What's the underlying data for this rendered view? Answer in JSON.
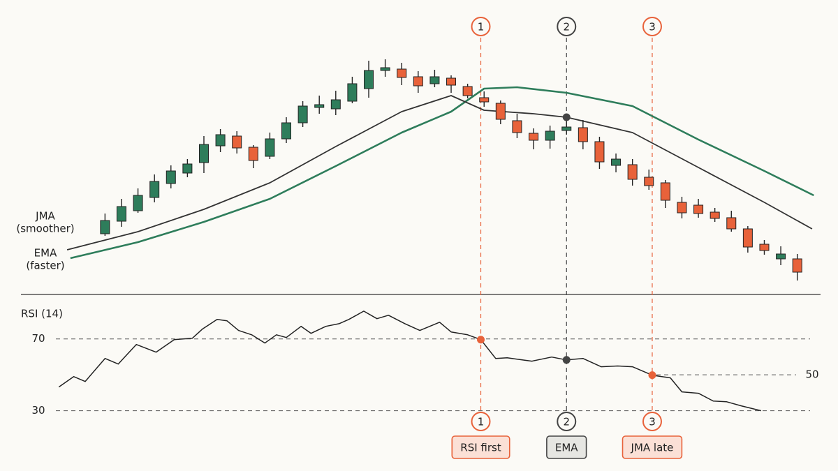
{
  "chart_data": [
    {
      "type": "candlestick",
      "up_color": "#2e7d5b",
      "down_color": "#e8623a",
      "xlim": [
        -5.1,
        43.2
      ],
      "ylim": [
        0,
        360
      ],
      "open": [
        85,
        103,
        118,
        137,
        157,
        172,
        187,
        211,
        225,
        209,
        196,
        221,
        244,
        266,
        264,
        275,
        293,
        319,
        321,
        310,
        300,
        308,
        296,
        280,
        272,
        247,
        229,
        219,
        233,
        237,
        217,
        183,
        184,
        166,
        158,
        130,
        126,
        116,
        108,
        92,
        70,
        49,
        49
      ],
      "close": [
        104,
        124,
        140,
        160,
        175,
        185,
        213,
        227,
        208,
        190,
        221,
        244,
        268,
        270,
        277,
        300,
        319,
        323,
        309,
        297,
        310,
        298,
        283,
        274,
        249,
        230,
        219,
        232,
        238,
        217,
        188,
        192,
        163,
        154,
        133,
        115,
        114,
        107,
        92,
        66,
        61,
        56,
        30
      ],
      "high": [
        114,
        135,
        150,
        170,
        183,
        192,
        225,
        235,
        232,
        212,
        230,
        252,
        275,
        283,
        290,
        310,
        333,
        335,
        330,
        318,
        320,
        312,
        300,
        289,
        276,
        257,
        236,
        240,
        248,
        248,
        224,
        200,
        192,
        177,
        162,
        138,
        135,
        122,
        118,
        96,
        76,
        67,
        56
      ],
      "low": [
        82,
        95,
        115,
        130,
        150,
        166,
        172,
        202,
        200,
        179,
        192,
        215,
        238,
        257,
        255,
        272,
        280,
        310,
        298,
        287,
        295,
        287,
        279,
        267,
        242,
        222,
        206,
        207,
        227,
        206,
        178,
        173,
        154,
        148,
        122,
        107,
        108,
        102,
        88,
        58,
        55,
        40,
        18
      ],
      "series": [
        {
          "name": "JMA",
          "note": "(smoother)",
          "color": "#2e7d5b",
          "x": [
            -2.1,
            2,
            6,
            10,
            14,
            18,
            21,
            23,
            25,
            28,
            32,
            36,
            40,
            43
          ],
          "values": [
            50,
            73,
            102,
            135,
            182,
            230,
            260,
            293,
            295,
            287,
            268,
            220,
            175,
            140
          ]
        },
        {
          "name": "EMA",
          "note": "(faster)",
          "color": "#333333",
          "x": [
            -2.3,
            2,
            6,
            10,
            14,
            18,
            21,
            23,
            26,
            28,
            32,
            36,
            40,
            42.9
          ],
          "values": [
            62,
            88,
            120,
            158,
            210,
            260,
            283,
            262,
            257,
            252,
            230,
            180,
            130,
            92
          ]
        }
      ],
      "markers": {
        "x": [
          28
        ],
        "values": [
          252
        ],
        "color": "#444444"
      },
      "signals": [
        {
          "number": 1,
          "label": "RSI first",
          "x": 22.8,
          "color": "#e8623a"
        },
        {
          "number": 2,
          "label": "EMA",
          "x": 28,
          "color": "#444444"
        },
        {
          "number": 3,
          "label": "JMA late",
          "x": 33.2,
          "color": "#e8623a"
        }
      ]
    },
    {
      "type": "line",
      "title": "RSI (14)",
      "color": "#222222",
      "xlim": [
        -5.1,
        43.2
      ],
      "ylim": [
        10,
        87
      ],
      "yticks": [
        30,
        70
      ],
      "right_ticks": [
        50
      ],
      "x": [
        -2.8,
        -1.9,
        -1.2,
        0,
        0.8,
        1.9,
        3.1,
        4.2,
        5.3,
        5.9,
        6.8,
        7.4,
        8.1,
        8.9,
        9.7,
        10.4,
        11,
        11.9,
        12.5,
        13.4,
        14.2,
        14.8,
        15.7,
        16.5,
        17.2,
        18.2,
        19.1,
        20.3,
        21,
        22,
        22.8,
        23.7,
        24.4,
        25,
        25.9,
        27.1,
        28,
        29,
        30.1,
        31.1,
        32,
        33.2,
        34.3,
        35,
        36,
        36.9,
        37.7,
        38.6,
        39.8
      ],
      "values": [
        43.2,
        49,
        46.3,
        59.1,
        56,
        66.9,
        62.6,
        69.6,
        70.4,
        75.4,
        80.9,
        80.1,
        74.7,
        72.3,
        67.7,
        72.3,
        70.8,
        77,
        73.1,
        77,
        78.5,
        80.9,
        85.5,
        81.3,
        83.2,
        78.5,
        74.7,
        79.3,
        73.9,
        72.3,
        69.6,
        59.1,
        59.5,
        58.7,
        57.6,
        59.9,
        58.3,
        59.1,
        54.5,
        54.9,
        54.5,
        49.8,
        48.3,
        40.5,
        39.7,
        35.4,
        35,
        32.7,
        30
      ],
      "markers": {
        "x": [
          22.8,
          28,
          33.2
        ],
        "values": [
          69.6,
          58.3,
          49.8
        ],
        "colors": [
          "#e8623a",
          "#444444",
          "#e8623a"
        ]
      }
    }
  ]
}
